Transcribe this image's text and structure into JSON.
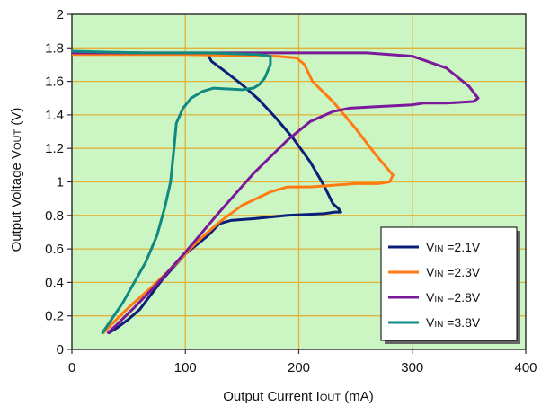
{
  "chart_data": {
    "type": "line",
    "xlabel": {
      "main": "Output Current I",
      "sub": "OUT",
      "unit": " (mA)"
    },
    "ylabel": {
      "main": "Output Voltage V",
      "sub": "OUT",
      "unit": " (V)"
    },
    "xlim": [
      0,
      400
    ],
    "ylim": [
      0,
      2
    ],
    "xticks": [
      0,
      100,
      200,
      300,
      400
    ],
    "yticks": [
      0,
      0.2,
      0.4,
      0.6,
      0.8,
      1,
      1.2,
      1.4,
      1.6,
      1.8,
      2
    ],
    "grid": true,
    "plot_background": "#ccf5c4",
    "grid_color": "#e0b23a",
    "legend_position": "bottom-right",
    "series": [
      {
        "name": "VIN =2.1V",
        "label_main": "V",
        "label_sub": "IN",
        "label_rest": " =2.1V",
        "color": "#0b1f78",
        "points": [
          [
            0,
            1.77
          ],
          [
            60,
            1.77
          ],
          [
            120,
            1.76
          ],
          [
            123,
            1.72
          ],
          [
            135,
            1.66
          ],
          [
            150,
            1.58
          ],
          [
            165,
            1.49
          ],
          [
            180,
            1.38
          ],
          [
            195,
            1.26
          ],
          [
            210,
            1.12
          ],
          [
            222,
            0.98
          ],
          [
            230,
            0.87
          ],
          [
            235,
            0.84
          ],
          [
            237,
            0.82
          ],
          [
            232,
            0.82
          ],
          [
            222,
            0.81
          ],
          [
            190,
            0.8
          ],
          [
            160,
            0.78
          ],
          [
            140,
            0.77
          ],
          [
            130,
            0.75
          ],
          [
            120,
            0.68
          ],
          [
            100,
            0.57
          ],
          [
            80,
            0.42
          ],
          [
            60,
            0.24
          ],
          [
            50,
            0.18
          ],
          [
            40,
            0.13
          ],
          [
            33,
            0.1
          ]
        ]
      },
      {
        "name": "VIN =2.3V",
        "label_main": "V",
        "label_sub": "IN",
        "label_rest": " =2.3V",
        "color": "#ff7a10",
        "points": [
          [
            0,
            1.76
          ],
          [
            100,
            1.76
          ],
          [
            180,
            1.75
          ],
          [
            198,
            1.74
          ],
          [
            205,
            1.7
          ],
          [
            212,
            1.6
          ],
          [
            230,
            1.48
          ],
          [
            250,
            1.32
          ],
          [
            268,
            1.16
          ],
          [
            278,
            1.08
          ],
          [
            283,
            1.04
          ],
          [
            280,
            1.0
          ],
          [
            270,
            0.99
          ],
          [
            250,
            0.99
          ],
          [
            230,
            0.98
          ],
          [
            210,
            0.97
          ],
          [
            190,
            0.97
          ],
          [
            175,
            0.94
          ],
          [
            150,
            0.86
          ],
          [
            130,
            0.76
          ],
          [
            110,
            0.64
          ],
          [
            90,
            0.5
          ],
          [
            70,
            0.37
          ],
          [
            50,
            0.25
          ],
          [
            35,
            0.15
          ],
          [
            28,
            0.1
          ]
        ]
      },
      {
        "name": "VIN =2.8V",
        "label_main": "V",
        "label_sub": "IN",
        "label_rest": " =2.8V",
        "color": "#7a1a9a",
        "points": [
          [
            0,
            1.77
          ],
          [
            100,
            1.77
          ],
          [
            200,
            1.77
          ],
          [
            260,
            1.77
          ],
          [
            300,
            1.75
          ],
          [
            330,
            1.68
          ],
          [
            350,
            1.57
          ],
          [
            358,
            1.5
          ],
          [
            354,
            1.48
          ],
          [
            330,
            1.47
          ],
          [
            310,
            1.47
          ],
          [
            300,
            1.46
          ],
          [
            270,
            1.45
          ],
          [
            245,
            1.44
          ],
          [
            230,
            1.42
          ],
          [
            210,
            1.36
          ],
          [
            190,
            1.25
          ],
          [
            160,
            1.05
          ],
          [
            130,
            0.82
          ],
          [
            100,
            0.58
          ],
          [
            75,
            0.39
          ],
          [
            55,
            0.25
          ],
          [
            40,
            0.15
          ],
          [
            32,
            0.1
          ]
        ]
      },
      {
        "name": "VIN =3.8V",
        "label_main": "V",
        "label_sub": "IN",
        "label_rest": " =3.8V",
        "color": "#108a80",
        "points": [
          [
            0,
            1.78
          ],
          [
            60,
            1.77
          ],
          [
            120,
            1.77
          ],
          [
            165,
            1.76
          ],
          [
            175,
            1.75
          ],
          [
            175,
            1.7
          ],
          [
            170,
            1.62
          ],
          [
            165,
            1.58
          ],
          [
            160,
            1.56
          ],
          [
            150,
            1.55
          ],
          [
            125,
            1.56
          ],
          [
            115,
            1.54
          ],
          [
            105,
            1.5
          ],
          [
            98,
            1.44
          ],
          [
            92,
            1.35
          ],
          [
            90,
            1.2
          ],
          [
            87,
            1.0
          ],
          [
            82,
            0.85
          ],
          [
            75,
            0.68
          ],
          [
            65,
            0.52
          ],
          [
            55,
            0.4
          ],
          [
            45,
            0.28
          ],
          [
            35,
            0.18
          ],
          [
            27,
            0.1
          ]
        ]
      }
    ]
  }
}
